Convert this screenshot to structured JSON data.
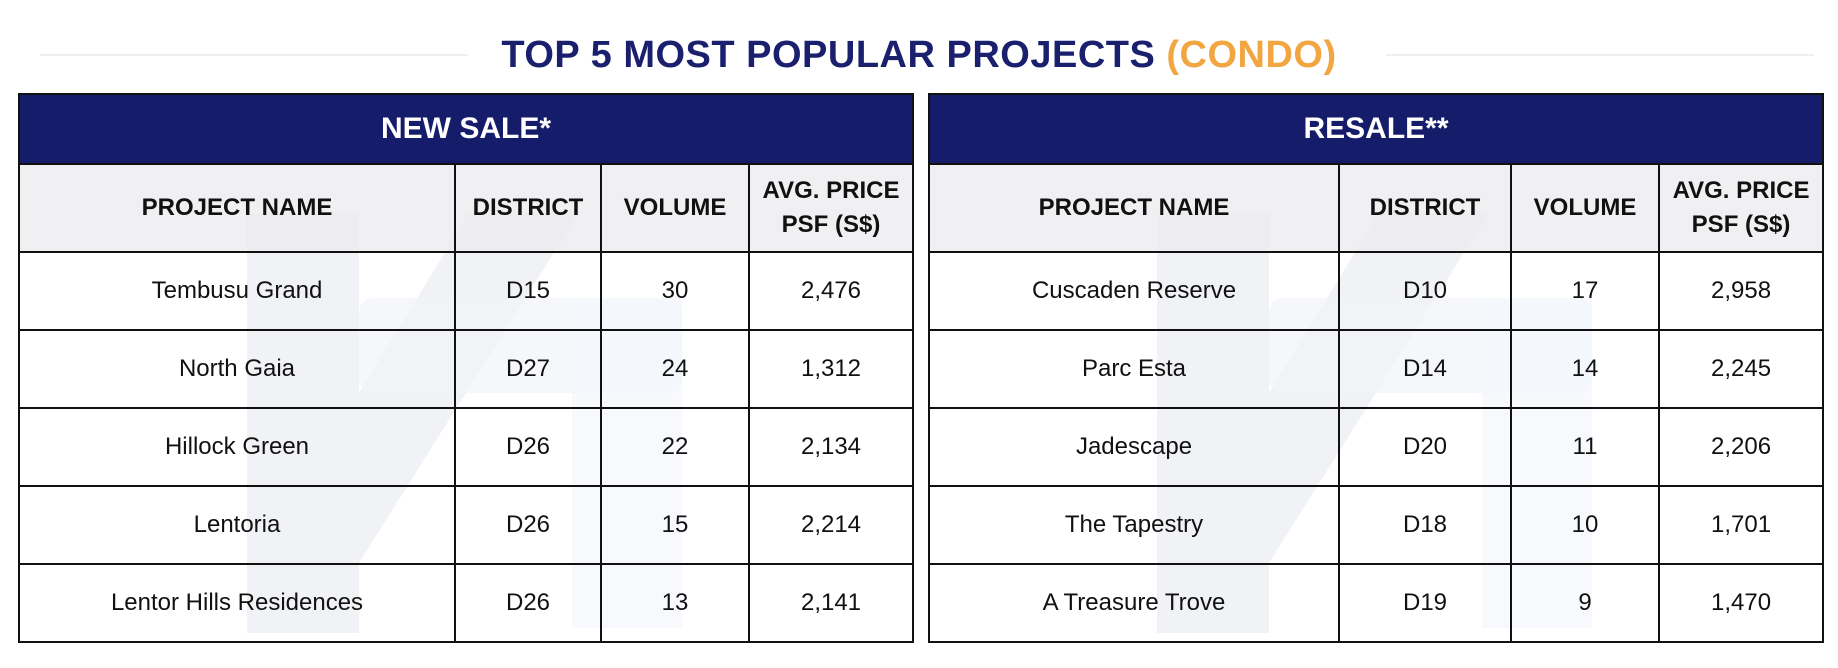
{
  "title": {
    "main": "TOP 5 MOST POPULAR PROJECTS",
    "accent": "(CONDO)"
  },
  "colors": {
    "navy": "#151c6a",
    "accent": "#f2a641",
    "header_gray": "#ebebee"
  },
  "new_sale": {
    "heading": "NEW SALE*",
    "columns": [
      "PROJECT NAME",
      "DISTRICT",
      "VOLUME",
      "AVG. PRICE PSF (S$)"
    ],
    "rows": [
      [
        "Tembusu Grand",
        "D15",
        "30",
        "2,476"
      ],
      [
        "North Gaia",
        "D27",
        "24",
        "1,312"
      ],
      [
        "Hillock Green",
        "D26",
        "22",
        "2,134"
      ],
      [
        "Lentoria",
        "D26",
        "15",
        "2,214"
      ],
      [
        "Lentor Hills Residences",
        "D26",
        "13",
        "2,141"
      ]
    ]
  },
  "resale": {
    "heading": "RESALE**",
    "columns": [
      "PROJECT NAME",
      "DISTRICT",
      "VOLUME",
      "AVG. PRICE PSF (S$)"
    ],
    "rows": [
      [
        "Cuscaden Reserve",
        "D10",
        "17",
        "2,958"
      ],
      [
        "Parc Esta",
        "D14",
        "14",
        "2,245"
      ],
      [
        "Jadescape",
        "D20",
        "11",
        "2,206"
      ],
      [
        "The Tapestry",
        "D18",
        "10",
        "1,701"
      ],
      [
        "A Treasure Trove",
        "D19",
        "9",
        "1,470"
      ]
    ]
  }
}
